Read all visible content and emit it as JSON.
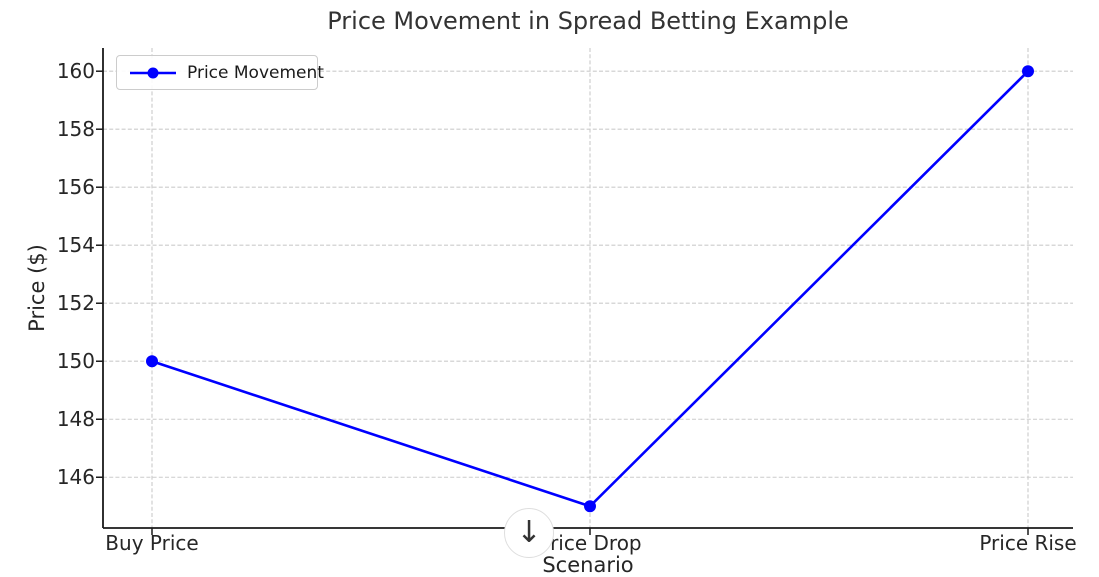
{
  "chart_data": {
    "type": "line",
    "title": "Price Movement in Spread Betting Example",
    "xlabel": "Scenario",
    "ylabel": "Price ($)",
    "categories": [
      "Buy Price",
      "Price Drop",
      "Price Rise"
    ],
    "series": [
      {
        "name": "Price Movement",
        "values": [
          150,
          145,
          160
        ],
        "color": "#0000ff",
        "marker": "circle"
      }
    ],
    "yticks": [
      146,
      148,
      150,
      152,
      154,
      156,
      158,
      160
    ],
    "ylim": [
      144.25,
      160.8
    ],
    "grid": true,
    "grid_style": "dashed",
    "legend_position": "upper left"
  },
  "overlay": {
    "scroll_button_icon": "down-arrow-icon",
    "glyph": "↓"
  },
  "colors": {
    "line": "#0000ff",
    "grid": "#cbcbcb",
    "spine": "#1a1a1a",
    "tick_mark": "#1a1a1a",
    "title_text": "#333333",
    "label_text": "#262626",
    "legend_border": "#cccccc",
    "button_border": "#dedede",
    "button_arrow": "#333333"
  }
}
